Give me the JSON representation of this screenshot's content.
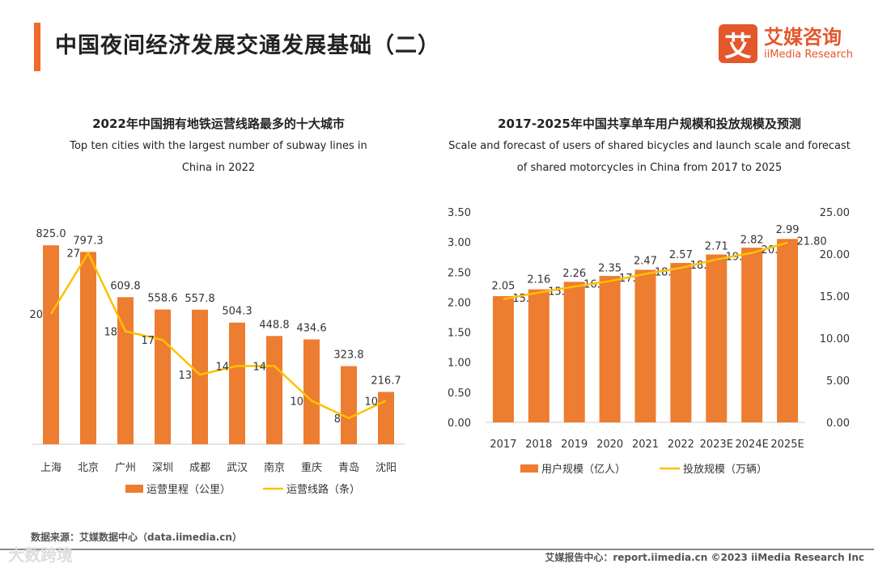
{
  "header": {
    "title": "中国夜间经济发展交通发展基础（二）",
    "logo_mark": "艾",
    "logo_cn": "艾媒咨询",
    "logo_en": "iiMedia Research"
  },
  "chart_data": [
    {
      "type": "bar",
      "title": "2022年中国拥有地铁运营线路最多的十大城市",
      "subtitle_lines": [
        "Top ten cities with the largest number of subway lines in",
        "China in 2022"
      ],
      "categories": [
        "上海",
        "北京",
        "广州",
        "深圳",
        "成都",
        "武汉",
        "南京",
        "重庆",
        "青岛",
        "沈阳"
      ],
      "series": [
        {
          "name": "运营里程（公里）",
          "type": "bar",
          "color": "#ed7d31",
          "values": [
            825.0,
            797.3,
            609.8,
            558.6,
            557.8,
            504.3,
            448.8,
            434.6,
            323.8,
            216.7
          ],
          "labels": [
            "825.0",
            "797.3",
            "609.8",
            "558.6",
            "557.8",
            "504.3",
            "448.8",
            "434.6",
            "323.8",
            "216.7"
          ]
        },
        {
          "name": "运营线路（条）",
          "type": "line",
          "color": "#ffc000",
          "values": [
            20,
            27,
            18,
            17,
            13,
            14,
            14,
            10,
            8,
            10
          ]
        }
      ],
      "legend": "bottom"
    },
    {
      "type": "bar",
      "title": "2017-2025年中国共享单车用户规模和投放规模及预测",
      "subtitle_lines": [
        "Scale and forecast of users of shared bicycles and launch scale and forecast",
        "of shared motorcycles in China from 2017 to 2025"
      ],
      "categories": [
        "2017",
        "2018",
        "2019",
        "2020",
        "2021",
        "2022",
        "2023E",
        "2024E",
        "2025E"
      ],
      "left_axis": {
        "ticks": [
          "0.00",
          "0.50",
          "1.00",
          "1.50",
          "2.00",
          "2.50",
          "3.00",
          "3.50"
        ],
        "range": [
          0,
          3.5
        ]
      },
      "right_axis": {
        "ticks": [
          "0.00",
          "5.00",
          "10.00",
          "15.00",
          "20.00",
          "25.00"
        ],
        "range": [
          0,
          25
        ]
      },
      "series": [
        {
          "name": "用户规模（亿人）",
          "type": "bar",
          "axis": "right",
          "color": "#ed7d31",
          "values": [
            15.0,
            15.81,
            16.7,
            17.4,
            18.13,
            18.94,
            19.95,
            20.76,
            21.8
          ],
          "labels": [
            "15.00",
            "15.81",
            "16.70",
            "17.40",
            "18.13",
            "18.94",
            "19.95",
            "20.76",
            "21.80"
          ]
        },
        {
          "name": "投放规模（万辆）",
          "type": "line",
          "axis": "left",
          "color": "#ffc000",
          "values": [
            2.05,
            2.16,
            2.26,
            2.35,
            2.47,
            2.57,
            2.71,
            2.82,
            2.99
          ],
          "labels": [
            "2.05",
            "2.16",
            "2.26",
            "2.35",
            "2.47",
            "2.57",
            "2.71",
            "2.82",
            "2.99"
          ]
        }
      ],
      "legend": "bottom"
    }
  ],
  "footer": {
    "source": "数据来源：艾媒数据中心（data.iimedia.cn）",
    "report": "艾媒报告中心：report.iimedia.cn  ©2023  iiMedia Research  Inc",
    "watermark": "大数跨境"
  }
}
